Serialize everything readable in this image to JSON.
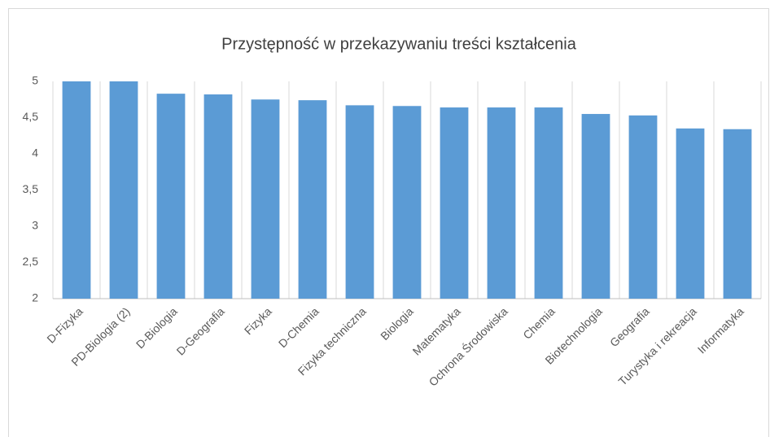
{
  "chart_data": {
    "type": "bar",
    "title": "Przystępność w przekazywaniu treści kształcenia",
    "categories": [
      "D-Fizyka",
      "PD-Biologia (2)",
      "D-Biologia",
      "D-Geografia",
      "Fizyka",
      "D-Chemia",
      "Fizyka techniczna",
      "Biologia",
      "Matematyka",
      "Ochrona Środowiska",
      "Chemia",
      "Biotechnologia",
      "Geografia",
      "Turystyka i rekreacja",
      "Informatyka"
    ],
    "values": [
      5,
      5,
      4.83,
      4.82,
      4.75,
      4.74,
      4.67,
      4.66,
      4.64,
      4.64,
      4.64,
      4.55,
      4.53,
      4.35,
      4.34
    ],
    "color": "#5b9bd5",
    "ylim": [
      2,
      5
    ],
    "yticks": [
      2,
      {
        "value": 2.5,
        "label": "2,5"
      },
      3,
      {
        "value": 3.5,
        "label": "3,5"
      },
      4,
      {
        "value": 4.5,
        "label": "4,5"
      },
      5
    ]
  }
}
